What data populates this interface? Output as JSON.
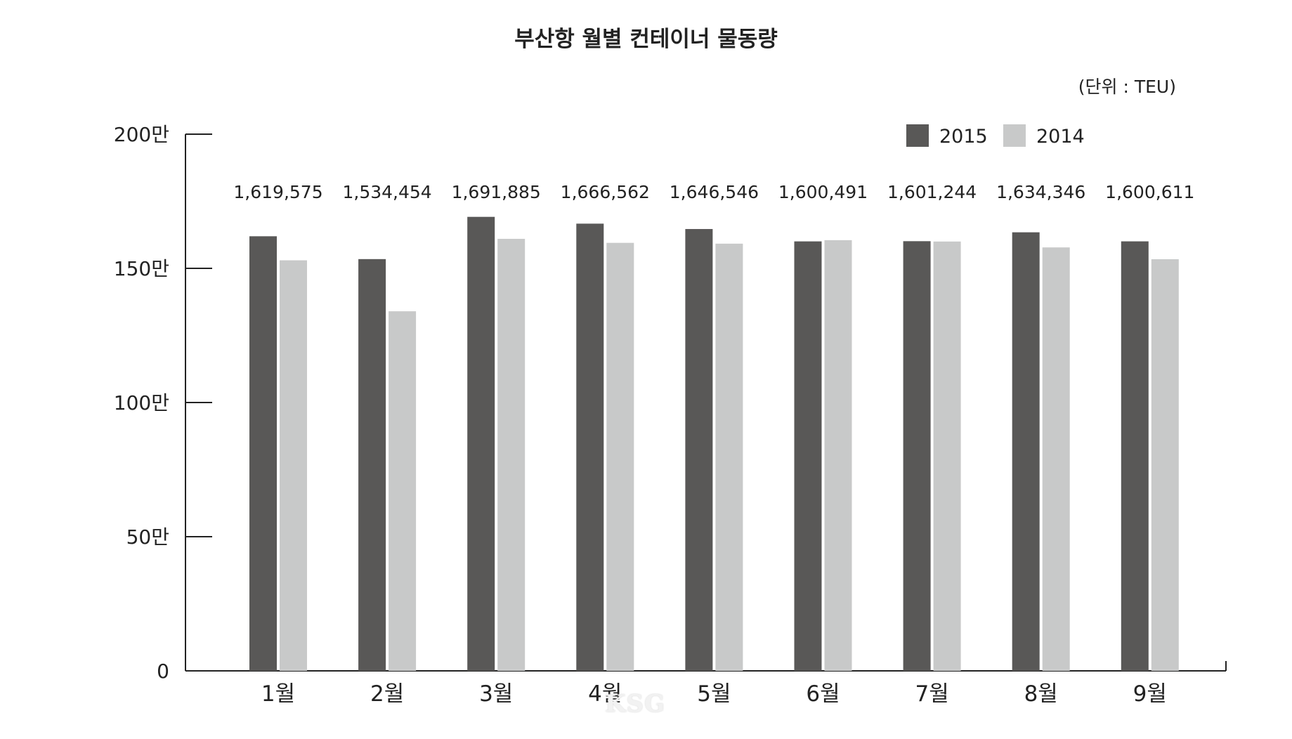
{
  "chart_data": {
    "type": "bar",
    "title": "부산항 월별 컨테이너 물동량",
    "unit_note": "(단위 : TEU)",
    "categories": [
      "1월",
      "2월",
      "3월",
      "4월",
      "5월",
      "6월",
      "7월",
      "8월",
      "9월"
    ],
    "series": [
      {
        "name": "2015",
        "color": "#595857",
        "values": [
          1619575,
          1534454,
          1691885,
          1666562,
          1646546,
          1600491,
          1601244,
          1634346,
          1600611
        ]
      },
      {
        "name": "2014",
        "color": "#c8c9c9",
        "values": [
          1530000,
          1340000,
          1610000,
          1595000,
          1592000,
          1605000,
          1600000,
          1578000,
          1534000
        ]
      }
    ],
    "data_labels": [
      "1,619,575",
      "1,534,454",
      "1,691,885",
      "1,666,562",
      "1,646,546",
      "1,600,491",
      "1,601,244",
      "1,634,346",
      "1,600,611"
    ],
    "ylim": [
      0,
      2000000
    ],
    "yticks": [
      0,
      500000,
      1000000,
      1500000,
      2000000
    ],
    "ytick_labels": [
      "0",
      "50만",
      "100만",
      "150만",
      "200만"
    ],
    "grid": false,
    "legend_position": "top-right",
    "watermark": "KSG"
  }
}
